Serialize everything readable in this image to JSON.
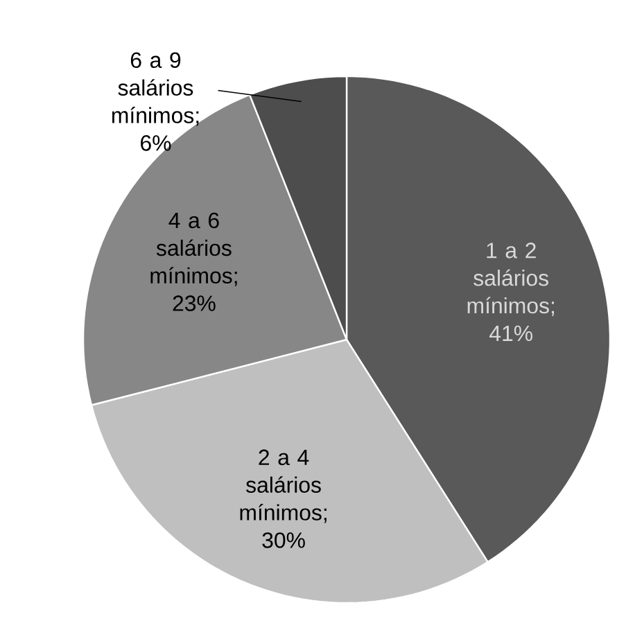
{
  "chart_data": {
    "type": "pie",
    "categories": [
      "1 a 2 salários mínimos",
      "2 a 4 salários mínimos",
      "4 a 6 salários mínimos",
      "6 a 9 salários mínimos"
    ],
    "values": [
      41,
      30,
      23,
      6
    ],
    "value_labels": [
      "; 41%",
      "; 30%",
      "; 23%",
      "; 6%"
    ],
    "colors": [
      "#595959",
      "#bfbfbf",
      "#878787",
      "#4d4d4d"
    ]
  }
}
